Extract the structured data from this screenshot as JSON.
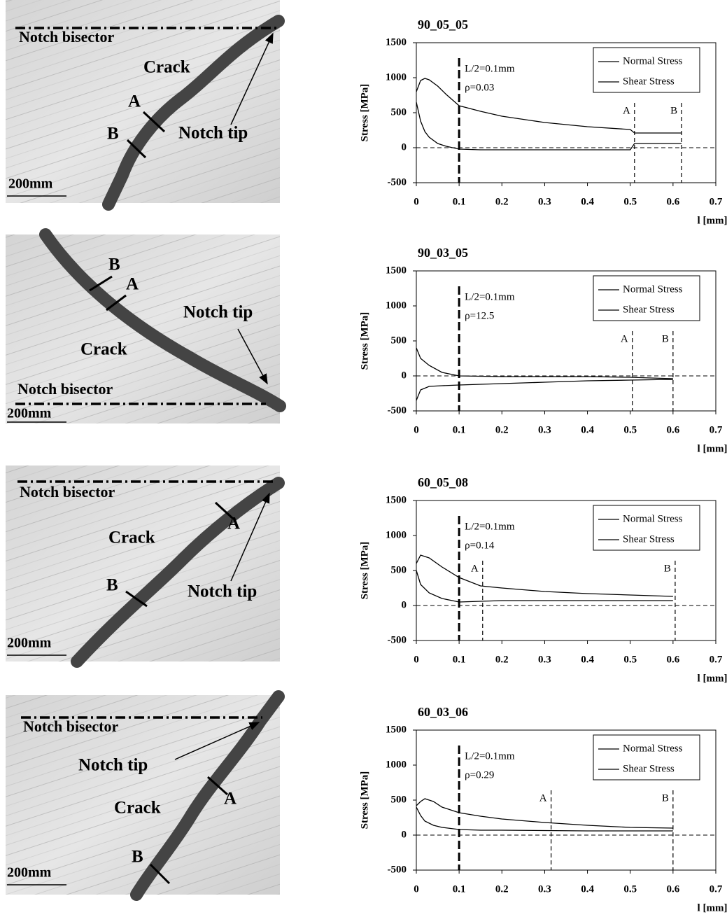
{
  "chart_data": [
    {
      "type": "line",
      "title": "90_05_05",
      "x_label": "l [mm]",
      "y_label": "Stress [MPa]",
      "x": [
        0,
        0.01,
        0.02,
        0.03,
        0.05,
        0.07,
        0.1,
        0.15,
        0.2,
        0.3,
        0.4,
        0.5,
        0.51,
        0.62
      ],
      "series": [
        {
          "name": "Normal Stress",
          "color": "#000000",
          "values": [
            800,
            960,
            990,
            970,
            880,
            760,
            600,
            520,
            450,
            360,
            300,
            260,
            210,
            210
          ]
        },
        {
          "name": "Shear Stress",
          "color": "#000000",
          "values": [
            650,
            380,
            230,
            150,
            60,
            20,
            -20,
            -30,
            -30,
            -30,
            -30,
            -30,
            60,
            60
          ]
        }
      ],
      "xlim": [
        0,
        0.7
      ],
      "ylim": [
        -500,
        1500
      ],
      "xticks": [
        0,
        0.1,
        0.2,
        0.3,
        0.4,
        0.5,
        0.6,
        0.7
      ],
      "yticks": [
        -500,
        0,
        500,
        1000,
        1500
      ],
      "l_half": {
        "label": "L/2=0.1mm",
        "x": 0.1
      },
      "rho": "ρ=0.03",
      "markers": [
        {
          "label": "A",
          "x": 0.51
        },
        {
          "label": "B",
          "x": 0.62
        }
      ]
    },
    {
      "type": "line",
      "title": "90_03_05",
      "x_label": "l [mm]",
      "y_label": "Stress [MPa]",
      "x": [
        0,
        0.01,
        0.03,
        0.06,
        0.1,
        0.2,
        0.3,
        0.4,
        0.5,
        0.6
      ],
      "series": [
        {
          "name": "Normal Stress",
          "color": "#000000",
          "values": [
            400,
            250,
            150,
            50,
            0,
            -10,
            -10,
            -10,
            -20,
            -40
          ]
        },
        {
          "name": "Shear Stress",
          "color": "#000000",
          "values": [
            -350,
            -200,
            -150,
            -140,
            -130,
            -110,
            -90,
            -70,
            -60,
            -50
          ]
        }
      ],
      "xlim": [
        0,
        0.7
      ],
      "ylim": [
        -500,
        1500
      ],
      "xticks": [
        0,
        0.1,
        0.2,
        0.3,
        0.4,
        0.5,
        0.6,
        0.7
      ],
      "yticks": [
        -500,
        0,
        500,
        1000,
        1500
      ],
      "l_half": {
        "label": "L/2=0.1mm",
        "x": 0.1
      },
      "rho": "ρ=12.5",
      "markers": [
        {
          "label": "A",
          "x": 0.505
        },
        {
          "label": "B",
          "x": 0.6
        }
      ]
    },
    {
      "type": "line",
      "title": "60_05_08",
      "x_label": "l [mm]",
      "y_label": "Stress [MPa]",
      "x": [
        0,
        0.01,
        0.03,
        0.06,
        0.1,
        0.15,
        0.2,
        0.3,
        0.4,
        0.5,
        0.6
      ],
      "series": [
        {
          "name": "Normal Stress",
          "color": "#000000",
          "values": [
            600,
            720,
            680,
            550,
            400,
            280,
            250,
            200,
            170,
            150,
            130
          ]
        },
        {
          "name": "Shear Stress",
          "color": "#000000",
          "values": [
            500,
            300,
            180,
            100,
            50,
            60,
            70,
            70,
            70,
            70,
            70
          ]
        }
      ],
      "xlim": [
        0,
        0.7
      ],
      "ylim": [
        -500,
        1500
      ],
      "xticks": [
        0,
        0.1,
        0.2,
        0.3,
        0.4,
        0.5,
        0.6,
        0.7
      ],
      "yticks": [
        -500,
        0,
        500,
        1000,
        1500
      ],
      "l_half": {
        "label": "L/2=0.1mm",
        "x": 0.1
      },
      "rho": "ρ=0.14",
      "markers": [
        {
          "label": "A",
          "x": 0.155
        },
        {
          "label": "B",
          "x": 0.605
        }
      ]
    },
    {
      "type": "line",
      "title": "60_03_06",
      "x_label": "l [mm]",
      "y_label": "Stress [MPa]",
      "x": [
        0,
        0.01,
        0.02,
        0.04,
        0.06,
        0.1,
        0.15,
        0.2,
        0.3,
        0.4,
        0.5,
        0.6
      ],
      "series": [
        {
          "name": "Normal Stress",
          "color": "#000000",
          "values": [
            420,
            480,
            520,
            480,
            400,
            320,
            270,
            230,
            180,
            140,
            110,
            100
          ]
        },
        {
          "name": "Shear Stress",
          "color": "#000000",
          "values": [
            400,
            280,
            200,
            140,
            110,
            80,
            70,
            70,
            65,
            60,
            60,
            60
          ]
        }
      ],
      "xlim": [
        0,
        0.7
      ],
      "ylim": [
        -500,
        1500
      ],
      "xticks": [
        0,
        0.1,
        0.2,
        0.3,
        0.4,
        0.5,
        0.6,
        0.7
      ],
      "yticks": [
        -500,
        0,
        500,
        1000,
        1500
      ],
      "l_half": {
        "label": "L/2=0.1mm",
        "x": 0.1
      },
      "rho": "ρ=0.29",
      "markers": [
        {
          "label": "A",
          "x": 0.315
        },
        {
          "label": "B",
          "x": 0.6
        }
      ]
    }
  ],
  "micrographs": [
    {
      "bisector": "Notch bisector",
      "crack": "Crack",
      "notch_tip": "Notch tip",
      "a": "A",
      "b": "B",
      "scale": "200mm"
    },
    {
      "bisector": "Notch bisector",
      "crack": "Crack",
      "notch_tip": "Notch tip",
      "a": "A",
      "b": "B",
      "scale": "200mm"
    },
    {
      "bisector": "Notch bisector",
      "crack": "Crack",
      "notch_tip": "Notch tip",
      "a": "A",
      "b": "B",
      "scale": "200mm"
    },
    {
      "bisector": "Notch bisector",
      "crack": "Crack",
      "notch_tip": "Notch tip",
      "a": "A",
      "b": "B",
      "scale": "200mm"
    }
  ]
}
